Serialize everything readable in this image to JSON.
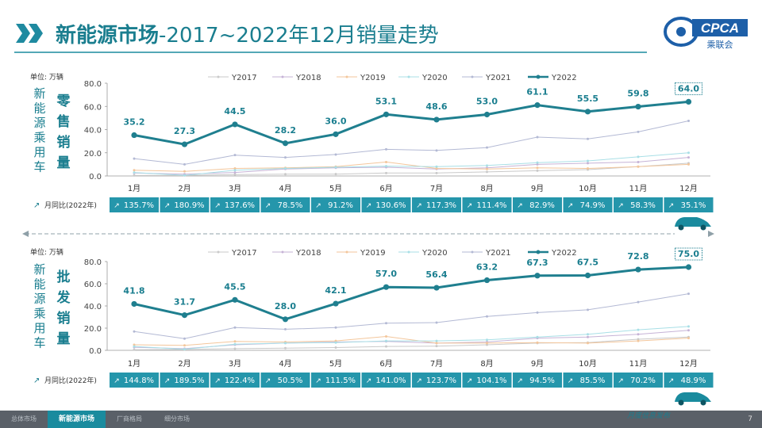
{
  "header": {
    "title_prefix": "新能源市场",
    "title_suffix": "-2017~2022年12月销量走势",
    "logo_text": "CPCA",
    "logo_subtext": "乘联会"
  },
  "footer": {
    "tabs": [
      "总体市场",
      "新能源市场",
      "厂商格局",
      "细分市场"
    ],
    "active_tab": 1,
    "page_number": "7",
    "tag": "月度信息发布"
  },
  "colors": {
    "accent": "#1a8b9e",
    "strip": "#2596ab",
    "y2017": "#c9c9c9",
    "y2018": "#c6b3d6",
    "y2019": "#f3c69b",
    "y2020": "#a8dfe6",
    "y2021": "#b3b9d4",
    "y2022": "#1f7f8f"
  },
  "chart_data": [
    {
      "type": "line",
      "side_label_left": "新能源乘用车",
      "side_label_right": "零售销量",
      "unit_label": "单位: 万辆",
      "categories": [
        "1月",
        "2月",
        "3月",
        "4月",
        "5月",
        "6月",
        "7月",
        "8月",
        "9月",
        "10月",
        "11月",
        "12月"
      ],
      "ylim": [
        0,
        80
      ],
      "yticks": [
        "0.0",
        "20.0",
        "40.0",
        "60.0",
        "80.0"
      ],
      "legend_position": "top",
      "series": [
        {
          "name": "Y2017",
          "values": [
            0.4,
            0.5,
            1.2,
            1.5,
            1.6,
            2.5,
            2.5,
            3.5,
            4.5,
            5.5,
            8.0,
            11.0
          ]
        },
        {
          "name": "Y2018",
          "values": [
            2.5,
            1.5,
            3.0,
            6.0,
            7.0,
            7.5,
            6.0,
            7.0,
            10.0,
            11.0,
            12.0,
            16.0
          ]
        },
        {
          "name": "Y2019",
          "values": [
            5.0,
            4.0,
            6.5,
            7.0,
            8.0,
            12.0,
            6.5,
            6.0,
            7.0,
            6.5,
            8.0,
            10.0
          ]
        },
        {
          "name": "Y2020",
          "values": [
            3.0,
            0.5,
            5.0,
            6.5,
            7.5,
            8.5,
            8.0,
            9.0,
            11.5,
            13.0,
            16.5,
            20.0
          ]
        },
        {
          "name": "Y2021",
          "values": [
            15.0,
            10.0,
            18.0,
            16.0,
            18.5,
            23.0,
            22.0,
            24.5,
            33.5,
            32.0,
            38.0,
            47.5
          ]
        },
        {
          "name": "Y2022",
          "values": [
            35.2,
            27.3,
            44.5,
            28.2,
            36.0,
            53.1,
            48.6,
            53.0,
            61.1,
            55.5,
            59.8,
            64.0
          ]
        }
      ],
      "data_labels": [
        "35.2",
        "27.3",
        "44.5",
        "28.2",
        "36.0",
        "53.1",
        "48.6",
        "53.0",
        "61.1",
        "55.5",
        "59.8",
        "64.0"
      ],
      "yoy_label": "月同比(2022年)",
      "yoy": [
        "135.7%",
        "180.9%",
        "137.6%",
        "78.5%",
        "91.2%",
        "130.6%",
        "117.3%",
        "111.4%",
        "82.9%",
        "74.9%",
        "58.3%",
        "35.1%"
      ]
    },
    {
      "type": "line",
      "side_label_left": "新能源乘用车",
      "side_label_right": "批发销量",
      "unit_label": "单位: 万辆",
      "categories": [
        "1月",
        "2月",
        "3月",
        "4月",
        "5月",
        "6月",
        "7月",
        "8月",
        "9月",
        "10月",
        "11月",
        "12月"
      ],
      "ylim": [
        0,
        80
      ],
      "yticks": [
        "0.0",
        "20.0",
        "40.0",
        "60.0",
        "80.0"
      ],
      "legend_position": "top",
      "series": [
        {
          "name": "Y2017",
          "values": [
            0.5,
            0.8,
            1.5,
            2.0,
            2.5,
            3.5,
            3.8,
            5.0,
            6.5,
            7.0,
            10.0,
            12.0
          ]
        },
        {
          "name": "Y2018",
          "values": [
            2.8,
            1.5,
            5.0,
            6.5,
            7.5,
            8.0,
            6.5,
            7.5,
            11.0,
            12.0,
            14.5,
            18.0
          ]
        },
        {
          "name": "Y2019",
          "values": [
            5.0,
            4.5,
            8.0,
            7.5,
            8.5,
            12.5,
            6.5,
            6.5,
            7.0,
            6.5,
            8.5,
            11.0
          ]
        },
        {
          "name": "Y2020",
          "values": [
            3.5,
            1.0,
            5.5,
            6.5,
            7.0,
            8.5,
            8.5,
            9.5,
            12.0,
            14.5,
            18.5,
            21.5
          ]
        },
        {
          "name": "Y2021",
          "values": [
            17.0,
            10.5,
            20.5,
            19.0,
            20.5,
            24.5,
            25.0,
            30.5,
            34.0,
            36.5,
            43.5,
            51.0
          ]
        },
        {
          "name": "Y2022",
          "values": [
            41.8,
            31.7,
            45.5,
            28.0,
            42.1,
            57.0,
            56.4,
            63.2,
            67.3,
            67.5,
            72.8,
            75.0
          ]
        }
      ],
      "data_labels": [
        "41.8",
        "31.7",
        "45.5",
        "28.0",
        "42.1",
        "57.0",
        "56.4",
        "63.2",
        "67.3",
        "67.5",
        "72.8",
        "75.0"
      ],
      "yoy_label": "月同比(2022年)",
      "yoy": [
        "144.8%",
        "189.5%",
        "122.4%",
        "50.5%",
        "111.5%",
        "141.0%",
        "123.7%",
        "104.1%",
        "94.5%",
        "85.5%",
        "70.2%",
        "48.9%"
      ]
    }
  ]
}
